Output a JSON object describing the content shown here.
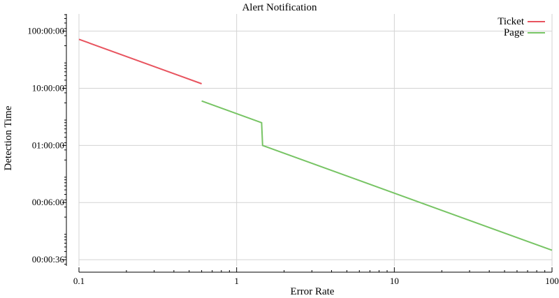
{
  "chart_data": {
    "type": "line",
    "title": "Alert Notification",
    "xlabel": "Error Rate",
    "ylabel": "Detection Time",
    "x_scale": "log",
    "y_scale": "log",
    "xlim": [
      0.1,
      100
    ],
    "ylim_seconds": [
      28,
      720000
    ],
    "x_ticks": [
      {
        "value": 0.1,
        "label": "0.1"
      },
      {
        "value": 1,
        "label": "1"
      },
      {
        "value": 10,
        "label": "10"
      },
      {
        "value": 100,
        "label": "100"
      }
    ],
    "y_ticks": [
      {
        "value": 36,
        "label": "00:00:36"
      },
      {
        "value": 360,
        "label": "00:06:00"
      },
      {
        "value": 3600,
        "label": "01:00:00"
      },
      {
        "value": 36000,
        "label": "10:00:00"
      },
      {
        "value": 360000,
        "label": "100:00:00"
      }
    ],
    "grid": true,
    "legend_position": "top-right",
    "series": [
      {
        "name": "Ticket",
        "color": "#e8545f",
        "points": [
          [
            0.1,
            259200
          ],
          [
            0.6,
            43200
          ]
        ]
      },
      {
        "name": "Page",
        "color": "#77c464",
        "points": [
          [
            0.6,
            21600
          ],
          [
            1.44,
            9000
          ],
          [
            1.46,
            3600
          ],
          [
            100,
            52.6
          ]
        ]
      }
    ]
  }
}
